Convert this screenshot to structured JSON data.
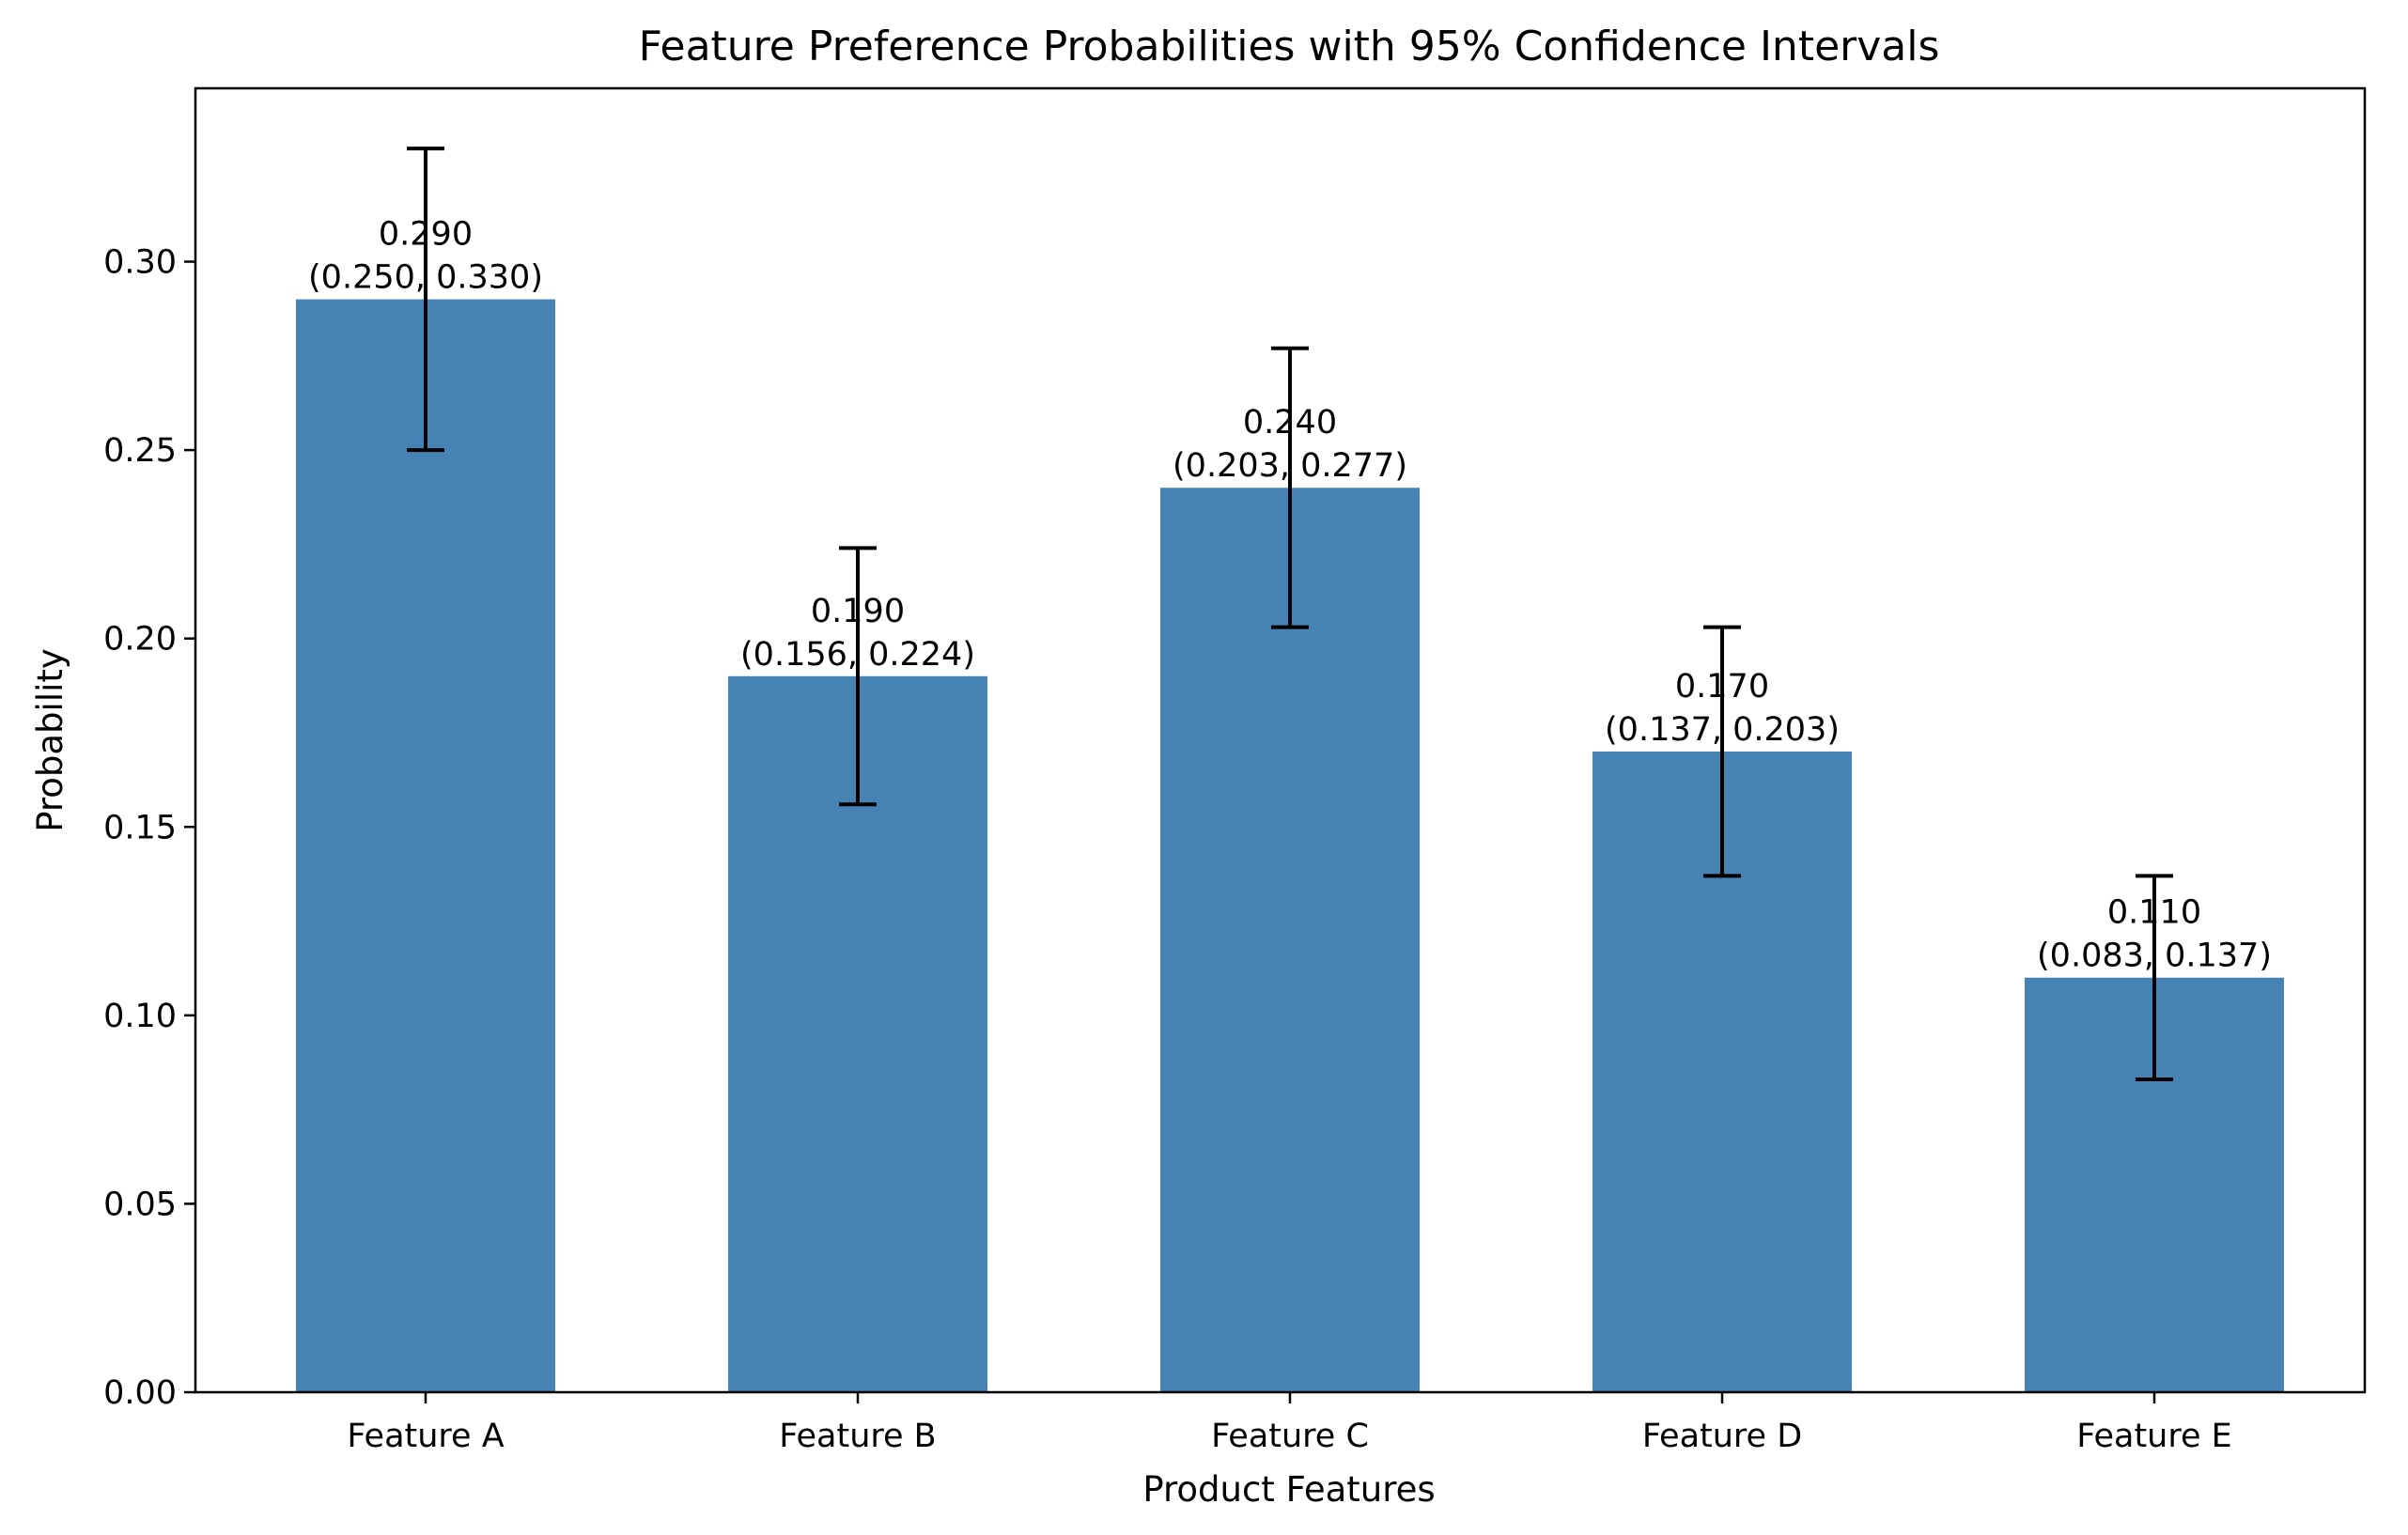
{
  "chart_data": {
    "type": "bar",
    "title": "Feature Preference Probabilities with 95% Confidence Intervals",
    "xlabel": "Product Features",
    "ylabel": "Probability",
    "categories": [
      "Feature A",
      "Feature B",
      "Feature C",
      "Feature D",
      "Feature E"
    ],
    "values": [
      0.29,
      0.19,
      0.24,
      0.17,
      0.11
    ],
    "ci_lower": [
      0.25,
      0.156,
      0.203,
      0.137,
      0.083
    ],
    "ci_upper": [
      0.33,
      0.224,
      0.277,
      0.203,
      0.137
    ],
    "value_labels": [
      "0.290",
      "0.190",
      "0.240",
      "0.170",
      "0.110"
    ],
    "interval_labels": [
      "(0.250, 0.330)",
      "(0.156, 0.224)",
      "(0.203, 0.277)",
      "(0.137, 0.203)",
      "(0.083, 0.137)"
    ],
    "y_ticks": [
      0.0,
      0.05,
      0.1,
      0.15,
      0.2,
      0.25,
      0.3
    ],
    "y_tick_labels": [
      "0.00",
      "0.05",
      "0.10",
      "0.15",
      "0.20",
      "0.25",
      "0.30"
    ],
    "ylim": [
      0,
      0.346
    ],
    "grid": false,
    "legend": "none",
    "colors": {
      "bar": "#4682b4",
      "error_bar": "#000000",
      "axis": "#000000"
    }
  }
}
